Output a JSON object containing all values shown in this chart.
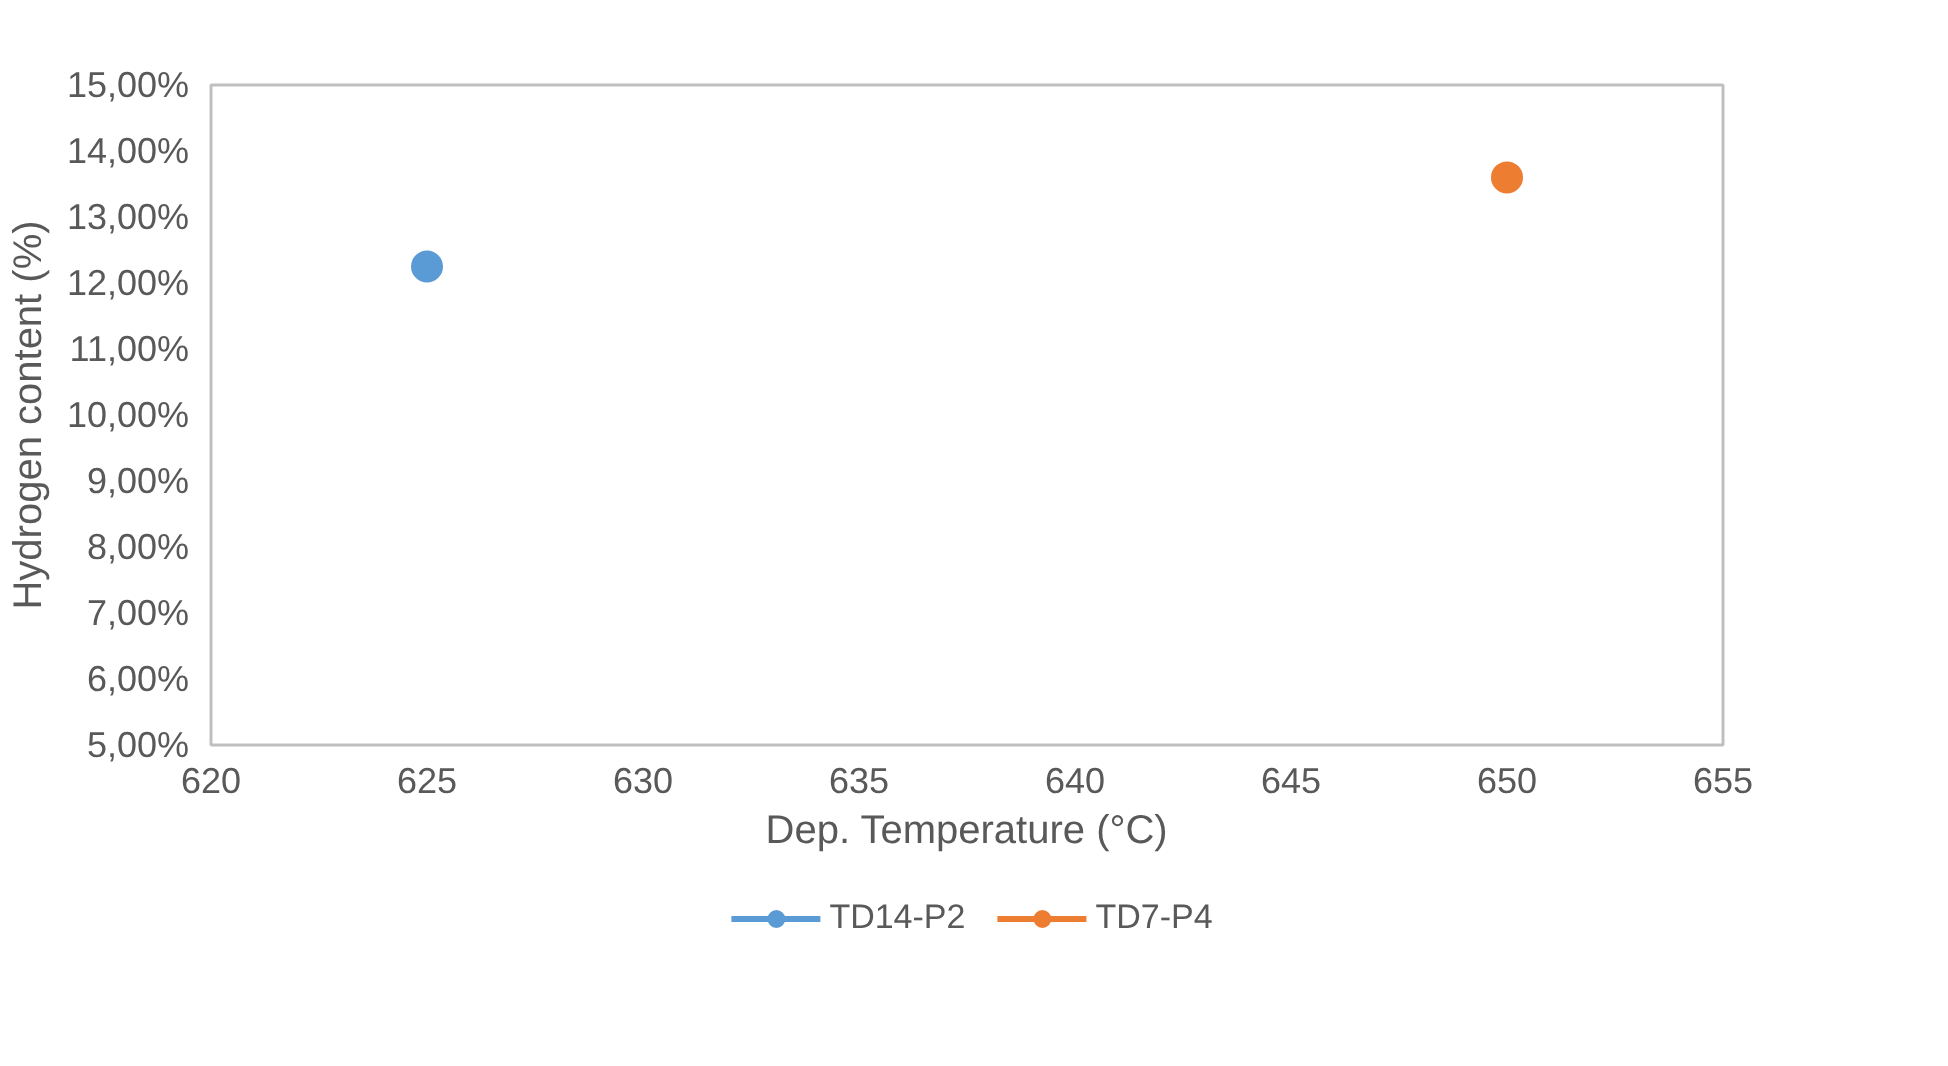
{
  "chart_data": {
    "type": "scatter",
    "xlabel": "Dep. Temperature (°C)",
    "ylabel": "Hydrogen content (%)",
    "series": [
      {
        "name": "TD14-P2",
        "color": "#5b9bd5",
        "x": [
          625
        ],
        "values": [
          12.25
        ]
      },
      {
        "name": "TD7-P4",
        "color": "#ed7d31",
        "x": [
          650
        ],
        "values": [
          13.6
        ]
      }
    ],
    "xlim": [
      620,
      655
    ],
    "xticks": [
      620,
      625,
      630,
      635,
      640,
      645,
      650,
      655
    ],
    "ylim": [
      5,
      15
    ],
    "yticks": [
      {
        "value": 5,
        "label": "5,00%"
      },
      {
        "value": 6,
        "label": "6,00%"
      },
      {
        "value": 7,
        "label": "7,00%"
      },
      {
        "value": 8,
        "label": "8,00%"
      },
      {
        "value": 9,
        "label": "9,00%"
      },
      {
        "value": 10,
        "label": "10,00%"
      },
      {
        "value": 11,
        "label": "11,00%"
      },
      {
        "value": 12,
        "label": "12,00%"
      },
      {
        "value": 13,
        "label": "13,00%"
      },
      {
        "value": 14,
        "label": "14,00%"
      },
      {
        "value": 15,
        "label": "15,00%"
      }
    ],
    "grid": false,
    "legend": "bottom",
    "marker": "circle"
  }
}
